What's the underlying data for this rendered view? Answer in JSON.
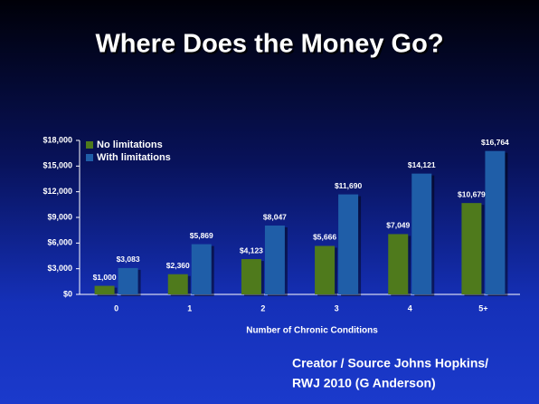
{
  "chart_data": {
    "type": "bar",
    "title": "Where Does the Money Go?",
    "x_label": "Number of Chronic Conditions",
    "source": [
      "Creator / Source Johns Hopkins/",
      "RWJ 2010 (G Anderson)"
    ],
    "categories": [
      "0",
      "1",
      "2",
      "3",
      "4",
      "5+"
    ],
    "series": [
      {
        "name": "No limitations",
        "color": "#4f7a1c",
        "values": [
          1000,
          2360,
          4123,
          5666,
          7049,
          10679
        ],
        "value_labels": [
          "$1,000",
          "$2,360",
          "$4,123",
          "$5,666",
          "$7,049",
          "$10,679"
        ]
      },
      {
        "name": "With limitations",
        "color": "#1f5ea8",
        "values": [
          3083,
          5869,
          8047,
          11690,
          14121,
          16764
        ],
        "value_labels": [
          "$3,083",
          "$5,869",
          "$8,047",
          "$11,690",
          "$14,121",
          "$16,764"
        ]
      }
    ],
    "ylim": [
      0,
      18000
    ],
    "yticks": [
      {
        "value": 0,
        "label": "$0"
      },
      {
        "value": 3000,
        "label": "$3,000"
      },
      {
        "value": 6000,
        "label": "$6,000"
      },
      {
        "value": 9000,
        "label": "$9,000"
      },
      {
        "value": 12000,
        "label": "$12,000"
      },
      {
        "value": 15000,
        "label": "$15,000"
      },
      {
        "value": 18000,
        "label": "$18,000"
      }
    ],
    "legend": "top-left"
  }
}
